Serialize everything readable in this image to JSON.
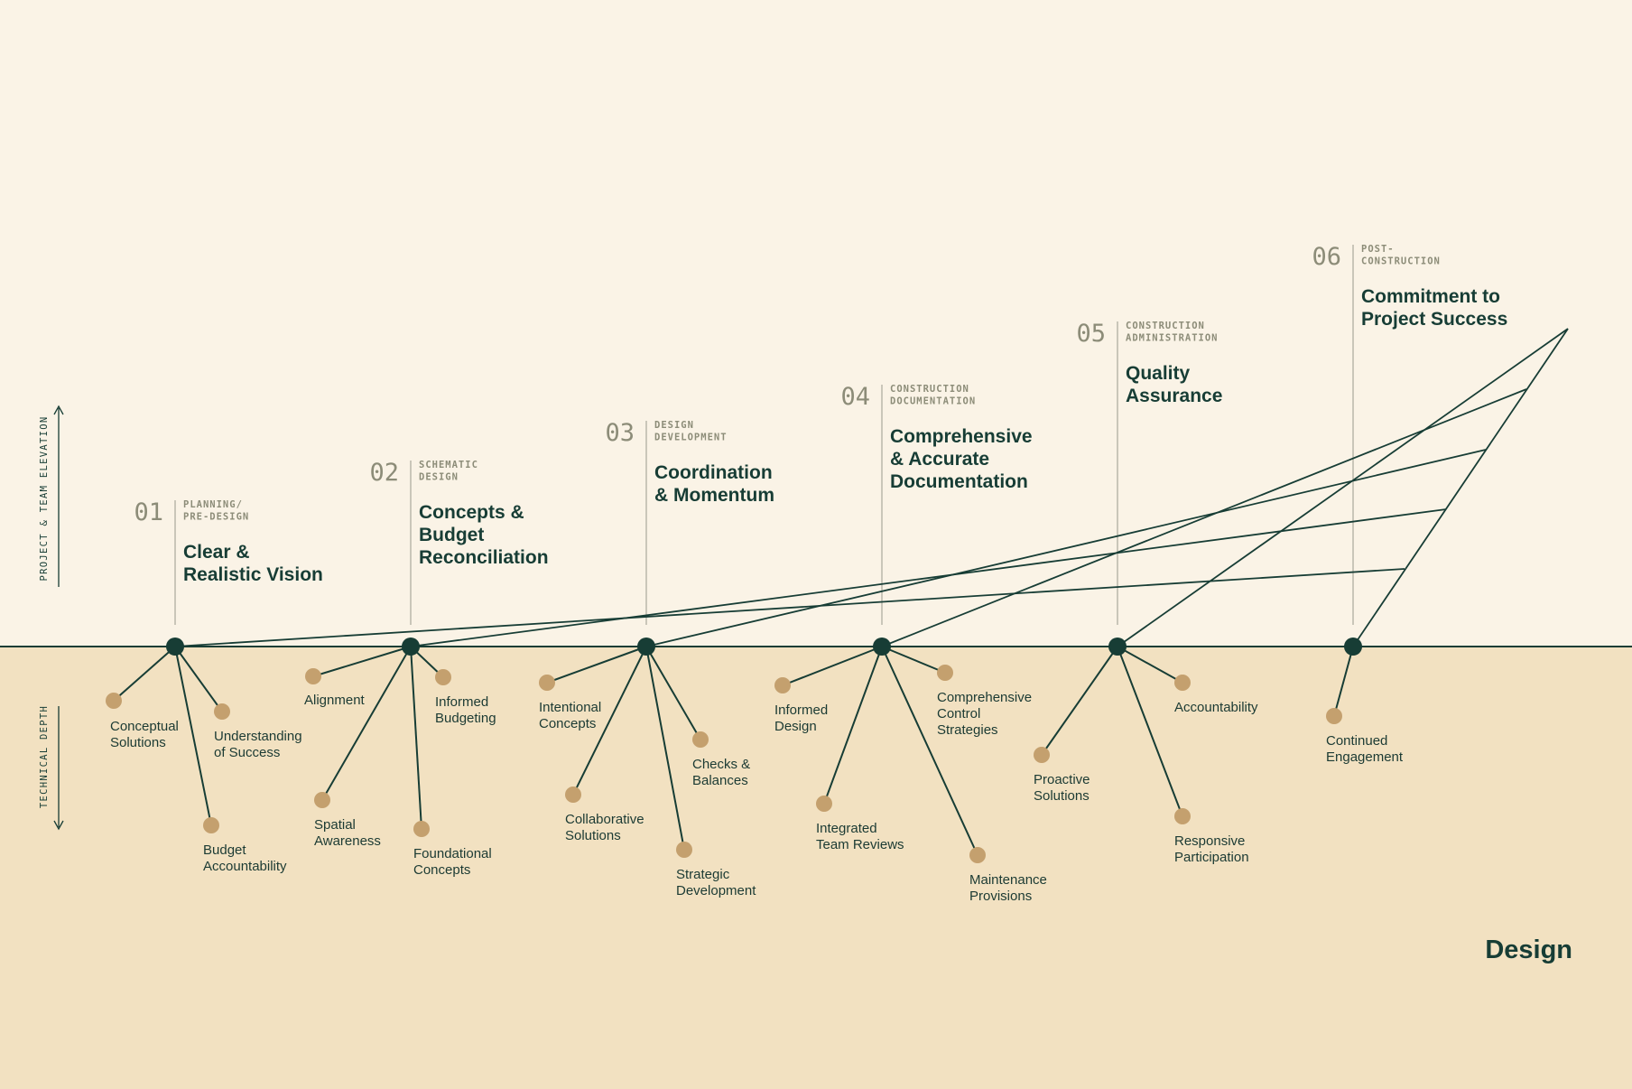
{
  "colors": {
    "sky": "#faf3e6",
    "ground": "#f2e1c1",
    "dark": "#173d35",
    "node": "#c4a06e",
    "num": "#8c8c78",
    "category": "#8c8c78",
    "guide": "#a9a99b"
  },
  "axis": {
    "elevation": "PROJECT & TEAM ELEVATION",
    "depth": "TECHNICAL DEPTH"
  },
  "brand": "Design",
  "phases": [
    {
      "num": "01",
      "category": [
        "PLANNING/",
        "PRE-DESIGN"
      ],
      "title": [
        "Clear &",
        "Realistic Vision"
      ],
      "elevation": 0,
      "nodes": [
        {
          "label": [
            "Conceptual",
            "Solutions"
          ]
        },
        {
          "label": [
            "Understanding",
            "of Success"
          ]
        },
        {
          "label": [
            "Budget",
            "Accountability"
          ]
        }
      ]
    },
    {
      "num": "02",
      "category": [
        "SCHEMATIC",
        "DESIGN"
      ],
      "title": [
        "Concepts &",
        "Budget",
        "Reconciliation"
      ],
      "elevation": 1,
      "nodes": [
        {
          "label": [
            "Alignment"
          ]
        },
        {
          "label": [
            "Informed",
            "Budgeting"
          ]
        },
        {
          "label": [
            "Spatial",
            "Awareness"
          ]
        },
        {
          "label": [
            "Foundational",
            "Concepts"
          ]
        }
      ]
    },
    {
      "num": "03",
      "category": [
        "DESIGN",
        "DEVELOPMENT"
      ],
      "title": [
        "Coordination",
        "& Momentum"
      ],
      "elevation": 2,
      "nodes": [
        {
          "label": [
            "Intentional",
            "Concepts"
          ]
        },
        {
          "label": [
            "Checks &",
            "Balances"
          ]
        },
        {
          "label": [
            "Collaborative",
            "Solutions"
          ]
        },
        {
          "label": [
            "Strategic",
            "Development"
          ]
        }
      ]
    },
    {
      "num": "04",
      "category": [
        "CONSTRUCTION",
        "DOCUMENTATION"
      ],
      "title": [
        "Comprehensive",
        "& Accurate",
        "Documentation"
      ],
      "elevation": 3,
      "nodes": [
        {
          "label": [
            "Informed",
            "Design"
          ]
        },
        {
          "label": [
            "Comprehensive",
            "Control",
            "Strategies"
          ]
        },
        {
          "label": [
            "Integrated",
            "Team Reviews"
          ]
        },
        {
          "label": [
            "Maintenance",
            "Provisions"
          ]
        }
      ]
    },
    {
      "num": "05",
      "category": [
        "CONSTRUCTION",
        "ADMINISTRATION"
      ],
      "title": [
        "Quality",
        "Assurance"
      ],
      "elevation": 4,
      "nodes": [
        {
          "label": [
            "Accountability"
          ]
        },
        {
          "label": [
            "Proactive",
            "Solutions"
          ]
        },
        {
          "label": [
            "Responsive",
            "Participation"
          ]
        }
      ]
    },
    {
      "num": "06",
      "category": [
        "POST-",
        "CONSTRUCTION"
      ],
      "title": [
        "Commitment to",
        "Project Success"
      ],
      "elevation": 5,
      "nodes": [
        {
          "label": [
            "Continued",
            "Engagement"
          ]
        }
      ]
    }
  ]
}
